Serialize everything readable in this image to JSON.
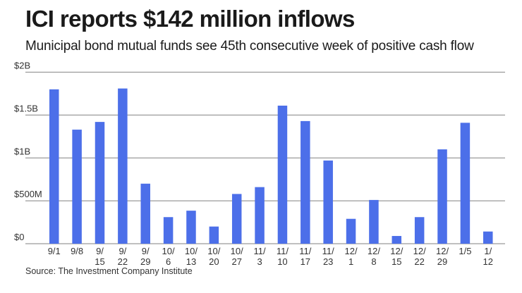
{
  "header": {
    "title": "ICI reports $142 million inflows",
    "subtitle": "Municipal bond mutual funds see 45th consecutive week of positive cash flow"
  },
  "source": "Source: The Investment Company Institute",
  "colors": {
    "bar": "#4c6fe9",
    "grid": "#9a9a9a",
    "axis": "#9a9a9a"
  },
  "chart_data": {
    "type": "bar",
    "title": "ICI reports $142 million inflows",
    "subtitle": "Municipal bond mutual funds see 45th consecutive week of positive cash flow",
    "xlabel": "",
    "ylabel": "",
    "ylim": [
      0,
      2000000000
    ],
    "grid": true,
    "yticks": [
      {
        "value": 0,
        "label": "$0"
      },
      {
        "value": 500000000,
        "label": "$500M"
      },
      {
        "value": 1000000000,
        "label": "$1B"
      },
      {
        "value": 1500000000,
        "label": "$1.5B"
      },
      {
        "value": 2000000000,
        "label": "$2B"
      }
    ],
    "categories": [
      [
        "9/1"
      ],
      [
        "9/8"
      ],
      [
        "9/",
        "15"
      ],
      [
        "9/",
        "22"
      ],
      [
        "9/",
        "29"
      ],
      [
        "10/",
        "6"
      ],
      [
        "10/",
        "13"
      ],
      [
        "10/",
        "20"
      ],
      [
        "10/",
        "27"
      ],
      [
        "11/",
        "3"
      ],
      [
        "11/",
        "10"
      ],
      [
        "11/",
        "17"
      ],
      [
        "11/",
        "23"
      ],
      [
        "12/",
        "1"
      ],
      [
        "12/",
        "8"
      ],
      [
        "12/",
        "15"
      ],
      [
        "12/",
        "22"
      ],
      [
        "12/",
        "29"
      ],
      [
        "1/5"
      ],
      [
        "1/",
        "12"
      ]
    ],
    "values": [
      1800000000,
      1330000000,
      1420000000,
      1810000000,
      700000000,
      310000000,
      385000000,
      200000000,
      580000000,
      660000000,
      1610000000,
      1430000000,
      970000000,
      290000000,
      510000000,
      90000000,
      310000000,
      1100000000,
      1410000000,
      142000000
    ]
  }
}
